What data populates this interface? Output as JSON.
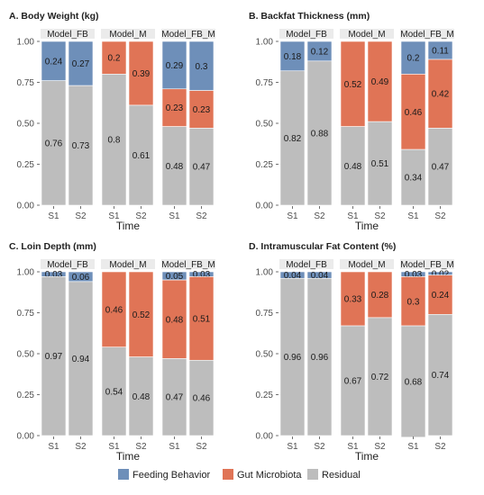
{
  "colors": {
    "Feeding Behavior": "#6E8FB9",
    "Gut Microbiota": "#E07456",
    "Residual": "#BDBDBD",
    "strip": "#EBEBEB"
  },
  "legend": {
    "entries": [
      "Feeding Behavior",
      "Gut Microbiota",
      "Residual"
    ],
    "placement": "bottom"
  },
  "chart_data": [
    {
      "type": "bar",
      "stacked": true,
      "title": "A. Body Weight (kg)",
      "xlabel": "Time",
      "ylabel": "",
      "ylim": [
        0,
        1
      ],
      "yticks": [
        "0.00",
        "0.25",
        "0.50",
        "0.75",
        "1.00"
      ],
      "facets": [
        {
          "name": "Model_FB",
          "categories": [
            "S1",
            "S2"
          ],
          "series": [
            {
              "name": "Feeding Behavior",
              "values": [
                0.24,
                0.27
              ]
            },
            {
              "name": "Residual",
              "values": [
                0.76,
                0.73
              ]
            }
          ]
        },
        {
          "name": "Model_M",
          "categories": [
            "S1",
            "S2"
          ],
          "series": [
            {
              "name": "Gut Microbiota",
              "values": [
                0.2,
                0.39
              ]
            },
            {
              "name": "Residual",
              "values": [
                0.8,
                0.61
              ]
            }
          ]
        },
        {
          "name": "Model_FB_M",
          "categories": [
            "S1",
            "S2"
          ],
          "series": [
            {
              "name": "Feeding Behavior",
              "values": [
                0.29,
                0.3
              ]
            },
            {
              "name": "Gut Microbiota",
              "values": [
                0.23,
                0.23
              ]
            },
            {
              "name": "Residual",
              "values": [
                0.48,
                0.47
              ]
            }
          ]
        }
      ]
    },
    {
      "type": "bar",
      "stacked": true,
      "title": "B. Backfat Thickness (mm)",
      "xlabel": "Time",
      "ylabel": "",
      "ylim": [
        0,
        1
      ],
      "yticks": [
        "0.00",
        "0.25",
        "0.50",
        "0.75",
        "1.00"
      ],
      "facets": [
        {
          "name": "Model_FB",
          "categories": [
            "S1",
            "S2"
          ],
          "series": [
            {
              "name": "Feeding Behavior",
              "values": [
                0.18,
                0.12
              ]
            },
            {
              "name": "Residual",
              "values": [
                0.82,
                0.88
              ]
            }
          ]
        },
        {
          "name": "Model_M",
          "categories": [
            "S1",
            "S2"
          ],
          "series": [
            {
              "name": "Gut Microbiota",
              "values": [
                0.52,
                0.49
              ]
            },
            {
              "name": "Residual",
              "values": [
                0.48,
                0.51
              ]
            }
          ]
        },
        {
          "name": "Model_FB_M",
          "categories": [
            "S1",
            "S2"
          ],
          "series": [
            {
              "name": "Feeding Behavior",
              "values": [
                0.2,
                0.11
              ]
            },
            {
              "name": "Gut Microbiota",
              "values": [
                0.46,
                0.42
              ]
            },
            {
              "name": "Residual",
              "values": [
                0.34,
                0.47
              ]
            }
          ]
        }
      ]
    },
    {
      "type": "bar",
      "stacked": true,
      "title": "C. Loin Depth (mm)",
      "xlabel": "Time",
      "ylabel": "",
      "ylim": [
        0,
        1
      ],
      "yticks": [
        "0.00",
        "0.25",
        "0.50",
        "0.75",
        "1.00"
      ],
      "facets": [
        {
          "name": "Model_FB",
          "categories": [
            "S1",
            "S2"
          ],
          "series": [
            {
              "name": "Feeding Behavior",
              "values": [
                0.03,
                0.06
              ]
            },
            {
              "name": "Residual",
              "values": [
                0.97,
                0.94
              ]
            }
          ]
        },
        {
          "name": "Model_M",
          "categories": [
            "S1",
            "S2"
          ],
          "series": [
            {
              "name": "Gut Microbiota",
              "values": [
                0.46,
                0.52
              ]
            },
            {
              "name": "Residual",
              "values": [
                0.54,
                0.48
              ]
            }
          ]
        },
        {
          "name": "Model_FB_M",
          "categories": [
            "S1",
            "S2"
          ],
          "series": [
            {
              "name": "Feeding Behavior",
              "values": [
                0.05,
                0.03
              ]
            },
            {
              "name": "Gut Microbiota",
              "values": [
                0.48,
                0.51
              ]
            },
            {
              "name": "Residual",
              "values": [
                0.47,
                0.46
              ]
            }
          ]
        }
      ]
    },
    {
      "type": "bar",
      "stacked": true,
      "title": "D. Intramuscular Fat Content (%)",
      "xlabel": "Time",
      "ylabel": "",
      "ylim": [
        0,
        1
      ],
      "yticks": [
        "0.00",
        "0.25",
        "0.50",
        "0.75",
        "1.00"
      ],
      "facets": [
        {
          "name": "Model_FB",
          "categories": [
            "S1",
            "S2"
          ],
          "series": [
            {
              "name": "Feeding Behavior",
              "values": [
                0.04,
                0.04
              ]
            },
            {
              "name": "Residual",
              "values": [
                0.96,
                0.96
              ]
            }
          ]
        },
        {
          "name": "Model_M",
          "categories": [
            "S1",
            "S2"
          ],
          "series": [
            {
              "name": "Gut Microbiota",
              "values": [
                0.33,
                0.28
              ]
            },
            {
              "name": "Residual",
              "values": [
                0.67,
                0.72
              ]
            }
          ]
        },
        {
          "name": "Model_FB_M",
          "categories": [
            "S1",
            "S2"
          ],
          "series": [
            {
              "name": "Feeding Behavior",
              "values": [
                0.03,
                0.02
              ]
            },
            {
              "name": "Gut Microbiota",
              "values": [
                0.3,
                0.24
              ]
            },
            {
              "name": "Residual",
              "values": [
                0.68,
                0.74
              ]
            }
          ]
        }
      ]
    }
  ]
}
